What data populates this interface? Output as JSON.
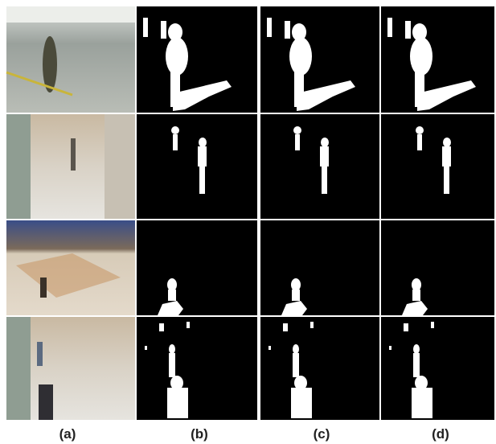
{
  "figure": {
    "column_labels": [
      "(a)",
      "(b)",
      "(c)",
      "(d)"
    ]
  }
}
